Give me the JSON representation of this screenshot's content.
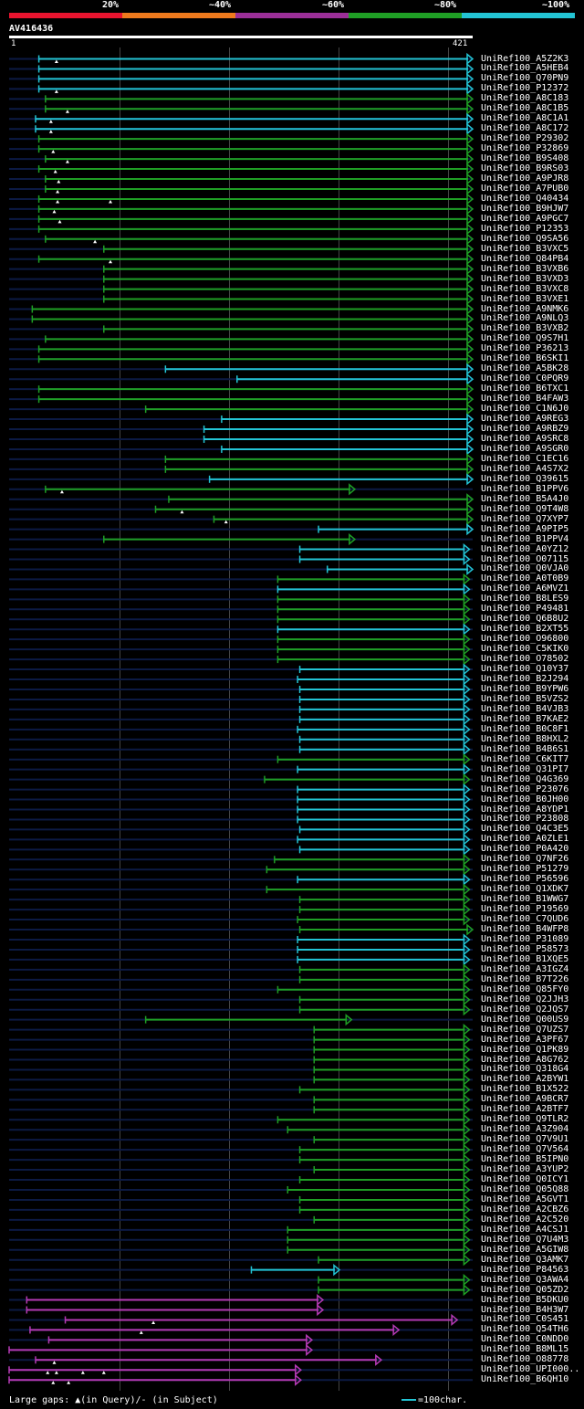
{
  "legend": [
    {
      "label": "20%",
      "color": "#e8142f"
    },
    {
      "label": "~40%",
      "color": "#ee7a1d"
    },
    {
      "label": "~60%",
      "color": "#9b2f98"
    },
    {
      "label": "~80%",
      "color": "#1f9f25"
    },
    {
      "label": "~100%",
      "color": "#23c4d4"
    }
  ],
  "query": {
    "id": "AV416436",
    "start": "1",
    "end": "421",
    "length": 421
  },
  "colors": {
    "c": "#23c4d4",
    "g": "#1f9f25",
    "m": "#b53ab5",
    "gap": "#0c1a44"
  },
  "hits": [
    {
      "name": "UniRef100_A5Z2K3",
      "s": 27,
      "e": 421,
      "c": "c",
      "t": [
        43
      ]
    },
    {
      "name": "UniRef100_A5HEB4",
      "s": 27,
      "e": 421,
      "c": "c",
      "t": []
    },
    {
      "name": "UniRef100_Q70PN9",
      "s": 27,
      "e": 421,
      "c": "c",
      "t": []
    },
    {
      "name": "UniRef100_P12372",
      "s": 27,
      "e": 421,
      "c": "c",
      "t": [
        43
      ]
    },
    {
      "name": "UniRef100_A8C183",
      "s": 33,
      "e": 421,
      "c": "g",
      "t": []
    },
    {
      "name": "UniRef100_A8C1B5",
      "s": 33,
      "e": 421,
      "c": "g",
      "t": [
        53
      ]
    },
    {
      "name": "UniRef100_A8C1A1",
      "s": 24,
      "e": 421,
      "c": "c",
      "t": [
        38
      ]
    },
    {
      "name": "UniRef100_A8C172",
      "s": 24,
      "e": 421,
      "c": "c",
      "t": [
        38
      ]
    },
    {
      "name": "UniRef100_P29302",
      "s": 27,
      "e": 421,
      "c": "g",
      "t": []
    },
    {
      "name": "UniRef100_P32869",
      "s": 27,
      "e": 421,
      "c": "g",
      "t": [
        40
      ]
    },
    {
      "name": "UniRef100_B9S408",
      "s": 33,
      "e": 421,
      "c": "g",
      "t": [
        53
      ]
    },
    {
      "name": "UniRef100_B9RS03",
      "s": 27,
      "e": 421,
      "c": "g",
      "t": [
        42
      ]
    },
    {
      "name": "UniRef100_A9PJR8",
      "s": 33,
      "e": 421,
      "c": "g",
      "t": [
        45
      ]
    },
    {
      "name": "UniRef100_A7PUB0",
      "s": 33,
      "e": 421,
      "c": "g",
      "t": [
        44
      ]
    },
    {
      "name": "UniRef100_Q40434",
      "s": 27,
      "e": 421,
      "c": "g",
      "t": [
        44,
        92
      ]
    },
    {
      "name": "UniRef100_B9HJW7",
      "s": 27,
      "e": 421,
      "c": "g",
      "t": [
        41
      ]
    },
    {
      "name": "UniRef100_A9PGC7",
      "s": 27,
      "e": 421,
      "c": "g",
      "t": [
        46
      ]
    },
    {
      "name": "UniRef100_P12353",
      "s": 27,
      "e": 421,
      "c": "g",
      "t": []
    },
    {
      "name": "UniRef100_Q9SA56",
      "s": 33,
      "e": 421,
      "c": "g",
      "t": [
        78
      ]
    },
    {
      "name": "UniRef100_B3VXC5",
      "s": 86,
      "e": 421,
      "c": "g",
      "t": []
    },
    {
      "name": "UniRef100_Q84PB4",
      "s": 27,
      "e": 421,
      "c": "g",
      "t": [
        92
      ]
    },
    {
      "name": "UniRef100_B3VXB6",
      "s": 86,
      "e": 421,
      "c": "g",
      "t": []
    },
    {
      "name": "UniRef100_B3VXD3",
      "s": 86,
      "e": 421,
      "c": "g",
      "t": []
    },
    {
      "name": "UniRef100_B3VXC8",
      "s": 86,
      "e": 421,
      "c": "g",
      "t": []
    },
    {
      "name": "UniRef100_B3VXE1",
      "s": 86,
      "e": 421,
      "c": "g",
      "t": []
    },
    {
      "name": "UniRef100_A9NMK6",
      "s": 21,
      "e": 421,
      "c": "g",
      "t": []
    },
    {
      "name": "UniRef100_A9NLQ3",
      "s": 21,
      "e": 421,
      "c": "g",
      "t": []
    },
    {
      "name": "UniRef100_B3VXB2",
      "s": 86,
      "e": 421,
      "c": "g",
      "t": []
    },
    {
      "name": "UniRef100_Q9S7H1",
      "s": 33,
      "e": 421,
      "c": "g",
      "t": []
    },
    {
      "name": "UniRef100_P36213",
      "s": 27,
      "e": 421,
      "c": "g",
      "t": []
    },
    {
      "name": "UniRef100_B6SKI1",
      "s": 27,
      "e": 421,
      "c": "g",
      "t": []
    },
    {
      "name": "UniRef100_A5BK28",
      "s": 142,
      "e": 421,
      "c": "c",
      "t": []
    },
    {
      "name": "UniRef100_C0PQR9",
      "s": 207,
      "e": 421,
      "c": "c",
      "t": []
    },
    {
      "name": "UniRef100_B6TXC1",
      "s": 27,
      "e": 421,
      "c": "g",
      "t": []
    },
    {
      "name": "UniRef100_B4FAW3",
      "s": 27,
      "e": 421,
      "c": "g",
      "t": []
    },
    {
      "name": "UniRef100_C1N6J0",
      "s": 124,
      "e": 421,
      "c": "g",
      "t": []
    },
    {
      "name": "UniRef100_A9REG3",
      "s": 193,
      "e": 421,
      "c": "c",
      "t": []
    },
    {
      "name": "UniRef100_A9RBZ9",
      "s": 177,
      "e": 421,
      "c": "c",
      "t": []
    },
    {
      "name": "UniRef100_A9SRC8",
      "s": 177,
      "e": 421,
      "c": "c",
      "t": []
    },
    {
      "name": "UniRef100_A9SGR0",
      "s": 193,
      "e": 421,
      "c": "c",
      "t": []
    },
    {
      "name": "UniRef100_C1EC16",
      "s": 142,
      "e": 421,
      "c": "g",
      "t": []
    },
    {
      "name": "UniRef100_A4S7X2",
      "s": 142,
      "e": 421,
      "c": "g",
      "t": []
    },
    {
      "name": "UniRef100_Q39615",
      "s": 182,
      "e": 421,
      "c": "c",
      "t": []
    },
    {
      "name": "UniRef100_B1PPV6",
      "s": 33,
      "e": 314,
      "c": "g",
      "t": [
        48
      ]
    },
    {
      "name": "UniRef100_B5A4J0",
      "s": 145,
      "e": 421,
      "c": "g",
      "t": []
    },
    {
      "name": "UniRef100_Q9T4W8",
      "s": 133,
      "e": 421,
      "c": "g",
      "t": [
        157
      ]
    },
    {
      "name": "UniRef100_Q7XYP7",
      "s": 186,
      "e": 421,
      "c": "g",
      "t": [
        197
      ]
    },
    {
      "name": "UniRef100_A9PIP5",
      "s": 281,
      "e": 421,
      "c": "c",
      "t": []
    },
    {
      "name": "UniRef100_B1PPV4",
      "s": 86,
      "e": 314,
      "c": "g",
      "t": []
    },
    {
      "name": "UniRef100_A0YZ12",
      "s": 264,
      "e": 418,
      "c": "c",
      "t": []
    },
    {
      "name": "UniRef100_O07115",
      "s": 264,
      "e": 418,
      "c": "c",
      "t": []
    },
    {
      "name": "UniRef100_Q0VJA0",
      "s": 289,
      "e": 421,
      "c": "c",
      "t": []
    },
    {
      "name": "UniRef100_A0T0B9",
      "s": 244,
      "e": 418,
      "c": "g",
      "t": []
    },
    {
      "name": "UniRef100_A6MVZ1",
      "s": 244,
      "e": 418,
      "c": "c",
      "t": []
    },
    {
      "name": "UniRef100_B8LES9",
      "s": 244,
      "e": 418,
      "c": "g",
      "t": []
    },
    {
      "name": "UniRef100_P49481",
      "s": 244,
      "e": 418,
      "c": "g",
      "t": []
    },
    {
      "name": "UniRef100_Q6B8U2",
      "s": 244,
      "e": 418,
      "c": "g",
      "t": []
    },
    {
      "name": "UniRef100_B2XT55",
      "s": 244,
      "e": 418,
      "c": "c",
      "t": []
    },
    {
      "name": "UniRef100_O96800",
      "s": 244,
      "e": 418,
      "c": "g",
      "t": []
    },
    {
      "name": "UniRef100_C5KIK0",
      "s": 244,
      "e": 418,
      "c": "g",
      "t": []
    },
    {
      "name": "UniRef100_O78502",
      "s": 244,
      "e": 418,
      "c": "g",
      "t": []
    },
    {
      "name": "UniRef100_Q10Y37",
      "s": 264,
      "e": 418,
      "c": "c",
      "t": []
    },
    {
      "name": "UniRef100_B2J294",
      "s": 262,
      "e": 418,
      "c": "c",
      "t": []
    },
    {
      "name": "UniRef100_B9YPW6",
      "s": 264,
      "e": 418,
      "c": "c",
      "t": []
    },
    {
      "name": "UniRef100_B5VZS2",
      "s": 264,
      "e": 418,
      "c": "c",
      "t": []
    },
    {
      "name": "UniRef100_B4VJB3",
      "s": 264,
      "e": 418,
      "c": "c",
      "t": []
    },
    {
      "name": "UniRef100_B7KAE2",
      "s": 264,
      "e": 418,
      "c": "c",
      "t": []
    },
    {
      "name": "UniRef100_B0C8F1",
      "s": 262,
      "e": 418,
      "c": "c",
      "t": []
    },
    {
      "name": "UniRef100_B8HXL2",
      "s": 264,
      "e": 418,
      "c": "c",
      "t": []
    },
    {
      "name": "UniRef100_B4B6S1",
      "s": 264,
      "e": 418,
      "c": "c",
      "t": []
    },
    {
      "name": "UniRef100_C6KIT7",
      "s": 244,
      "e": 418,
      "c": "g",
      "t": []
    },
    {
      "name": "UniRef100_Q31PI7",
      "s": 262,
      "e": 418,
      "c": "c",
      "t": []
    },
    {
      "name": "UniRef100_Q4G369",
      "s": 232,
      "e": 418,
      "c": "g",
      "t": []
    },
    {
      "name": "UniRef100_P23076",
      "s": 262,
      "e": 418,
      "c": "c",
      "t": []
    },
    {
      "name": "UniRef100_B0JH00",
      "s": 262,
      "e": 418,
      "c": "c",
      "t": []
    },
    {
      "name": "UniRef100_A8YDP1",
      "s": 262,
      "e": 418,
      "c": "c",
      "t": []
    },
    {
      "name": "UniRef100_P23808",
      "s": 262,
      "e": 418,
      "c": "c",
      "t": []
    },
    {
      "name": "UniRef100_Q4C3E5",
      "s": 264,
      "e": 418,
      "c": "c",
      "t": []
    },
    {
      "name": "UniRef100_A0ZLE1",
      "s": 262,
      "e": 418,
      "c": "c",
      "t": []
    },
    {
      "name": "UniRef100_P0A420",
      "s": 264,
      "e": 418,
      "c": "c",
      "t": []
    },
    {
      "name": "UniRef100_Q7NF26",
      "s": 241,
      "e": 418,
      "c": "g",
      "t": []
    },
    {
      "name": "UniRef100_P51279",
      "s": 234,
      "e": 418,
      "c": "g",
      "t": []
    },
    {
      "name": "UniRef100_P56596",
      "s": 262,
      "e": 418,
      "c": "c",
      "t": []
    },
    {
      "name": "UniRef100_Q1XDK7",
      "s": 234,
      "e": 418,
      "c": "g",
      "t": []
    },
    {
      "name": "UniRef100_B1WWG7",
      "s": 264,
      "e": 418,
      "c": "g",
      "t": []
    },
    {
      "name": "UniRef100_P19569",
      "s": 264,
      "e": 418,
      "c": "g",
      "t": []
    },
    {
      "name": "UniRef100_C7QUD6",
      "s": 262,
      "e": 418,
      "c": "g",
      "t": []
    },
    {
      "name": "UniRef100_B4WFP8",
      "s": 264,
      "e": 421,
      "c": "g",
      "t": []
    },
    {
      "name": "UniRef100_P31089",
      "s": 262,
      "e": 418,
      "c": "c",
      "t": []
    },
    {
      "name": "UniRef100_P58573",
      "s": 262,
      "e": 418,
      "c": "c",
      "t": []
    },
    {
      "name": "UniRef100_B1XQE5",
      "s": 262,
      "e": 418,
      "c": "c",
      "t": []
    },
    {
      "name": "UniRef100_A3IGZ4",
      "s": 264,
      "e": 418,
      "c": "g",
      "t": []
    },
    {
      "name": "UniRef100_B7T226",
      "s": 264,
      "e": 418,
      "c": "g",
      "t": []
    },
    {
      "name": "UniRef100_Q85FY0",
      "s": 244,
      "e": 418,
      "c": "g",
      "t": []
    },
    {
      "name": "UniRef100_Q2JJH3",
      "s": 264,
      "e": 418,
      "c": "g",
      "t": []
    },
    {
      "name": "UniRef100_Q2JQS7",
      "s": 264,
      "e": 418,
      "c": "g",
      "t": []
    },
    {
      "name": "UniRef100_Q00US9",
      "s": 124,
      "e": 311,
      "c": "g",
      "t": []
    },
    {
      "name": "UniRef100_Q7UZS7",
      "s": 277,
      "e": 418,
      "c": "g",
      "t": []
    },
    {
      "name": "UniRef100_A3PF67",
      "s": 277,
      "e": 418,
      "c": "g",
      "t": []
    },
    {
      "name": "UniRef100_Q1PK89",
      "s": 277,
      "e": 418,
      "c": "g",
      "t": []
    },
    {
      "name": "UniRef100_A8G762",
      "s": 277,
      "e": 418,
      "c": "g",
      "t": []
    },
    {
      "name": "UniRef100_Q318G4",
      "s": 277,
      "e": 418,
      "c": "g",
      "t": []
    },
    {
      "name": "UniRef100_A2BYW1",
      "s": 277,
      "e": 418,
      "c": "g",
      "t": []
    },
    {
      "name": "UniRef100_B1X522",
      "s": 264,
      "e": 418,
      "c": "g",
      "t": []
    },
    {
      "name": "UniRef100_A9BCR7",
      "s": 277,
      "e": 418,
      "c": "g",
      "t": []
    },
    {
      "name": "UniRef100_A2BTF7",
      "s": 277,
      "e": 418,
      "c": "g",
      "t": []
    },
    {
      "name": "UniRef100_Q9TLR2",
      "s": 244,
      "e": 418,
      "c": "g",
      "t": []
    },
    {
      "name": "UniRef100_A3Z904",
      "s": 253,
      "e": 418,
      "c": "g",
      "t": []
    },
    {
      "name": "UniRef100_Q7V9U1",
      "s": 277,
      "e": 418,
      "c": "g",
      "t": []
    },
    {
      "name": "UniRef100_Q7V564",
      "s": 264,
      "e": 418,
      "c": "g",
      "t": []
    },
    {
      "name": "UniRef100_B5IPN0",
      "s": 264,
      "e": 418,
      "c": "g",
      "t": []
    },
    {
      "name": "UniRef100_A3YUP2",
      "s": 277,
      "e": 418,
      "c": "g",
      "t": []
    },
    {
      "name": "UniRef100_Q0ICY1",
      "s": 264,
      "e": 418,
      "c": "g",
      "t": []
    },
    {
      "name": "UniRef100_Q05Q88",
      "s": 253,
      "e": 418,
      "c": "g",
      "t": []
    },
    {
      "name": "UniRef100_A5GVT1",
      "s": 264,
      "e": 418,
      "c": "g",
      "t": []
    },
    {
      "name": "UniRef100_A2CBZ6",
      "s": 264,
      "e": 418,
      "c": "g",
      "t": []
    },
    {
      "name": "UniRef100_A2C520",
      "s": 277,
      "e": 418,
      "c": "g",
      "t": []
    },
    {
      "name": "UniRef100_A4CSJ1",
      "s": 253,
      "e": 418,
      "c": "g",
      "t": []
    },
    {
      "name": "UniRef100_Q7U4M3",
      "s": 253,
      "e": 418,
      "c": "g",
      "t": []
    },
    {
      "name": "UniRef100_A5GIW8",
      "s": 253,
      "e": 418,
      "c": "g",
      "t": []
    },
    {
      "name": "UniRef100_Q3AMK7",
      "s": 281,
      "e": 418,
      "c": "g",
      "t": []
    },
    {
      "name": "UniRef100_P84563",
      "s": 220,
      "e": 300,
      "c": "c",
      "t": []
    },
    {
      "name": "UniRef100_Q3AWA4",
      "s": 281,
      "e": 418,
      "c": "g",
      "t": []
    },
    {
      "name": "UniRef100_Q05ZD2",
      "s": 281,
      "e": 418,
      "c": "g",
      "t": []
    },
    {
      "name": "UniRef100_B5DKU0",
      "s": 16,
      "e": 285,
      "c": "m",
      "t": []
    },
    {
      "name": "UniRef100_B4H3W7",
      "s": 16,
      "e": 285,
      "c": "m",
      "t": []
    },
    {
      "name": "UniRef100_C0S451",
      "s": 51,
      "e": 407,
      "c": "m",
      "t": [
        131
      ]
    },
    {
      "name": "UniRef100_Q54TH6",
      "s": 19,
      "e": 354,
      "c": "m",
      "t": [
        120
      ]
    },
    {
      "name": "UniRef100_C0NDD0",
      "s": 36,
      "e": 275,
      "c": "m",
      "t": []
    },
    {
      "name": "UniRef100_B8ML15",
      "s": 0,
      "e": 275,
      "c": "m",
      "t": []
    },
    {
      "name": "UniRef100_O88778",
      "s": 24,
      "e": 338,
      "c": "m",
      "t": [
        41
      ]
    },
    {
      "name": "UniRef100_UPI000..",
      "s": 0,
      "e": 265,
      "c": "m",
      "t": [
        35,
        43,
        67,
        86
      ]
    },
    {
      "name": "UniRef100_B6QH10",
      "s": 0,
      "e": 265,
      "c": "m",
      "t": [
        40,
        54
      ]
    }
  ],
  "footer": {
    "gaps_text": "Large gaps: ▲(in Query)/- (in Subject)",
    "scale_text": "=100char."
  }
}
